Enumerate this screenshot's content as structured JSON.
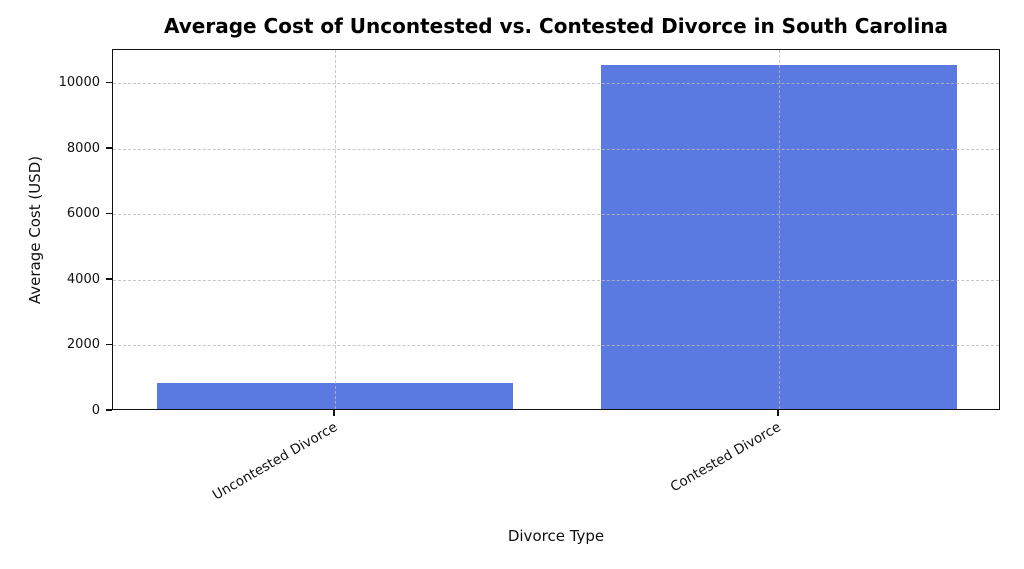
{
  "chart_data": {
    "type": "bar",
    "title": "Average Cost of Uncontested vs. Contested Divorce in South Carolina",
    "xlabel": "Divorce Type",
    "ylabel": "Average Cost (USD)",
    "categories": [
      "Uncontested Divorce",
      "Contested Divorce"
    ],
    "values": [
      800,
      10500
    ],
    "ylim": [
      0,
      11025
    ],
    "yticks": [
      0,
      2000,
      4000,
      6000,
      8000,
      10000
    ],
    "bar_color": "#5B7AE1",
    "background_color": "#ffffff",
    "grid": true,
    "grid_style": "dashed",
    "grid_color": "#b9b9b9",
    "legend": false,
    "x_tick_rotation_deg": 30
  }
}
